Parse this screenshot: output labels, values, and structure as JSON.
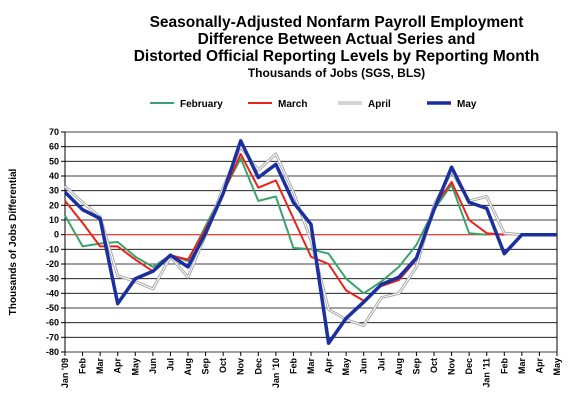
{
  "titles": {
    "line1": "Seasonally-Adjusted Nonfarm Payroll Employment",
    "line2": "Difference Between Actual Series and",
    "line3": "Distorted Official Reporting Levels by Reporting Month",
    "subtitle": "Thousands of Jobs (SGS, BLS)"
  },
  "colors": {
    "February": "#3aa36b",
    "March": "#e8231c",
    "April": "#a9a9a9",
    "May": "#1c2f9e",
    "zero_line": "#e8231c",
    "grid": "#000000"
  },
  "chart_data": {
    "type": "line",
    "title": "Seasonally-Adjusted Nonfarm Payroll Employment Difference Between Actual Series and Distorted Official Reporting Levels by Reporting Month",
    "subtitle": "Thousands of Jobs (SGS, BLS)",
    "xlabel": "",
    "ylabel": "Thousands of Jobs Differential",
    "ylim": [
      -80,
      70
    ],
    "ytick_step": 10,
    "grid": true,
    "legend_position": "top",
    "categories": [
      "Jan '09",
      "Feb",
      "Mar",
      "Apr",
      "May",
      "Jun",
      "Jul",
      "Aug",
      "Sep",
      "Oct",
      "Nov",
      "Dec",
      "Jan '10",
      "Feb",
      "Mar",
      "Apr",
      "May",
      "Jun",
      "Jul",
      "Aug",
      "Sep",
      "Oct",
      "Nov",
      "Dec",
      "Jan '11",
      "Feb",
      "Mar",
      "Apr",
      "May"
    ],
    "series": [
      {
        "name": "February",
        "values": [
          13,
          -8,
          -6,
          -5,
          -15,
          -22,
          -14,
          -18,
          6,
          29,
          52,
          23,
          26,
          -9,
          -10,
          -13,
          -30,
          -40,
          -32,
          -22,
          -7,
          17,
          34,
          1,
          0,
          null,
          null,
          null,
          null
        ]
      },
      {
        "name": "March",
        "values": [
          23,
          8,
          -8,
          -8,
          -17,
          -25,
          -14,
          -17,
          4,
          28,
          55,
          32,
          37,
          11,
          -15,
          -20,
          -38,
          -45,
          -35,
          -31,
          -17,
          19,
          36,
          10,
          1,
          0,
          null,
          null,
          null
        ]
      },
      {
        "name": "April",
        "values": [
          33,
          22,
          12,
          -28,
          -32,
          -37,
          -15,
          -29,
          0,
          32,
          60,
          44,
          55,
          29,
          -4,
          -51,
          -58,
          -62,
          -43,
          -40,
          -22,
          20,
          43,
          23,
          26,
          1,
          0,
          null,
          null
        ]
      },
      {
        "name": "May",
        "values": [
          29,
          17,
          11,
          -47,
          -30,
          -25,
          -14,
          -22,
          1,
          28,
          64,
          39,
          48,
          22,
          7,
          -74,
          -57,
          -46,
          -34,
          -29,
          -16,
          17,
          46,
          22,
          18,
          -13,
          0,
          0,
          0
        ]
      }
    ]
  }
}
